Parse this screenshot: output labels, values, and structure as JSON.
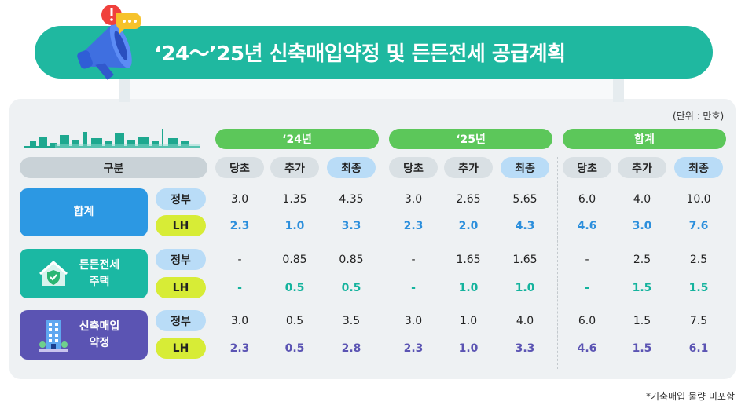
{
  "title": "‘24～’25년 신축매입약정 및 든든전세 공급계획",
  "unit": "(단위 : 만호)",
  "footnote": "*기축매입 물량 미포함",
  "header": {
    "gubun": "구분",
    "groups": [
      "‘24년",
      "‘25년",
      "합계"
    ],
    "sub": [
      "당초",
      "추가",
      "최종"
    ]
  },
  "rows": [
    {
      "category": "합계",
      "gov": {
        "label": "정부",
        "values": [
          "3.0",
          "1.35",
          "4.35",
          "3.0",
          "2.65",
          "5.65",
          "6.0",
          "4.0",
          "10.0"
        ]
      },
      "lh": {
        "label": "LH",
        "values": [
          "2.3",
          "1.0",
          "3.3",
          "2.3",
          "2.0",
          "4.3",
          "4.6",
          "3.0",
          "7.6"
        ]
      }
    },
    {
      "category_line1": "든든전세",
      "category_line2": "주택",
      "gov": {
        "label": "정부",
        "values": [
          "-",
          "0.85",
          "0.85",
          "-",
          "1.65",
          "1.65",
          "-",
          "2.5",
          "2.5"
        ]
      },
      "lh": {
        "label": "LH",
        "values": [
          "-",
          "0.5",
          "0.5",
          "-",
          "1.0",
          "1.0",
          "-",
          "1.5",
          "1.5"
        ]
      }
    },
    {
      "category_line1": "신축매입",
      "category_line2": "약정",
      "gov": {
        "label": "정부",
        "values": [
          "3.0",
          "0.5",
          "3.5",
          "3.0",
          "1.0",
          "4.0",
          "6.0",
          "1.5",
          "7.5"
        ]
      },
      "lh": {
        "label": "LH",
        "values": [
          "2.3",
          "0.5",
          "2.8",
          "2.3",
          "1.0",
          "3.3",
          "4.6",
          "1.5",
          "6.1"
        ]
      }
    }
  ],
  "colors": {
    "banner": "#1fb8a0",
    "group_header": "#5cc75a",
    "total_block": "#2c98e3",
    "jeonse_block": "#1bb8a3",
    "new_block": "#5b54b3",
    "lh_pill": "#d7ec36",
    "gov_pill": "#b9dcf7"
  },
  "icons": [
    "megaphone-icon",
    "alert-bubble-icon",
    "house-shield-icon",
    "building-icon",
    "city-skyline"
  ]
}
